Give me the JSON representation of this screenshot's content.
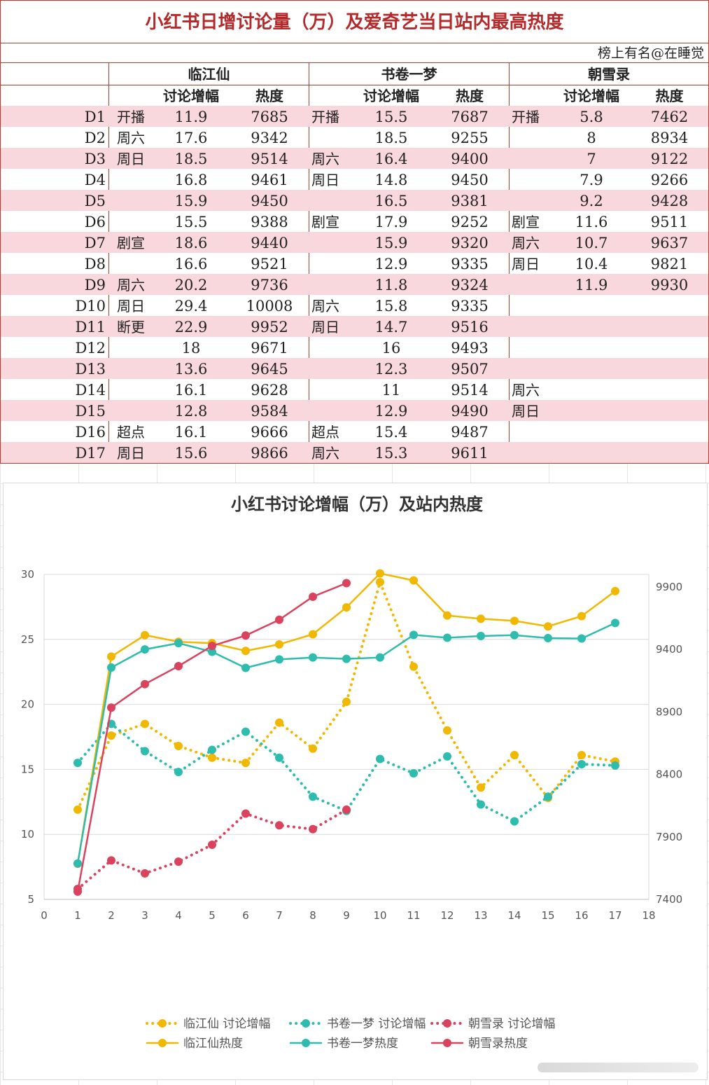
{
  "table": {
    "title": "小红书日增讨论量（万）及爱奇艺当日站内最高热度",
    "author": "榜上有名@在睡觉",
    "shows": [
      "临江仙",
      "书卷一梦",
      "朝雪录"
    ],
    "sub_headers": [
      "讨论增幅",
      "热度"
    ],
    "rows": [
      {
        "day": "D1",
        "a_note": "开播",
        "a_d": "11.9",
        "a_h": "7685",
        "b_note": "开播",
        "b_d": "15.5",
        "b_h": "7687",
        "c_note": "开播",
        "c_d": "5.8",
        "c_h": "7462"
      },
      {
        "day": "D2",
        "a_note": "周六",
        "a_d": "17.6",
        "a_h": "9342",
        "b_note": "",
        "b_d": "18.5",
        "b_h": "9255",
        "c_note": "",
        "c_d": "8",
        "c_h": "8934"
      },
      {
        "day": "D3",
        "a_note": "周日",
        "a_d": "18.5",
        "a_h": "9514",
        "b_note": "周六",
        "b_d": "16.4",
        "b_h": "9400",
        "c_note": "",
        "c_d": "7",
        "c_h": "9122"
      },
      {
        "day": "D4",
        "a_note": "",
        "a_d": "16.8",
        "a_h": "9461",
        "b_note": "周日",
        "b_d": "14.8",
        "b_h": "9450",
        "c_note": "",
        "c_d": "7.9",
        "c_h": "9266"
      },
      {
        "day": "D5",
        "a_note": "",
        "a_d": "15.9",
        "a_h": "9450",
        "b_note": "",
        "b_d": "16.5",
        "b_h": "9381",
        "c_note": "",
        "c_d": "9.2",
        "c_h": "9428"
      },
      {
        "day": "D6",
        "a_note": "",
        "a_d": "15.5",
        "a_h": "9388",
        "b_note": "剧宣",
        "b_d": "17.9",
        "b_h": "9252",
        "c_note": "剧宣",
        "c_d": "11.6",
        "c_h": "9511"
      },
      {
        "day": "D7",
        "a_note": "剧宣",
        "a_d": "18.6",
        "a_h": "9440",
        "b_note": "",
        "b_d": "15.9",
        "b_h": "9320",
        "c_note": "周六",
        "c_d": "10.7",
        "c_h": "9637"
      },
      {
        "day": "D8",
        "a_note": "",
        "a_d": "16.6",
        "a_h": "9521",
        "b_note": "",
        "b_d": "12.9",
        "b_h": "9335",
        "c_note": "周日",
        "c_d": "10.4",
        "c_h": "9821"
      },
      {
        "day": "D9",
        "a_note": "周六",
        "a_d": "20.2",
        "a_h": "9736",
        "b_note": "",
        "b_d": "11.8",
        "b_h": "9324",
        "c_note": "",
        "c_d": "11.9",
        "c_h": "9930"
      },
      {
        "day": "D10",
        "a_note": "周日",
        "a_d": "29.4",
        "a_h": "10008",
        "b_note": "周六",
        "b_d": "15.8",
        "b_h": "9335",
        "c_note": "",
        "c_d": "",
        "c_h": ""
      },
      {
        "day": "D11",
        "a_note": "断更",
        "a_d": "22.9",
        "a_h": "9952",
        "b_note": "周日",
        "b_d": "14.7",
        "b_h": "9516",
        "c_note": "",
        "c_d": "",
        "c_h": ""
      },
      {
        "day": "D12",
        "a_note": "",
        "a_d": "18",
        "a_h": "9671",
        "b_note": "",
        "b_d": "16",
        "b_h": "9493",
        "c_note": "",
        "c_d": "",
        "c_h": ""
      },
      {
        "day": "D13",
        "a_note": "",
        "a_d": "13.6",
        "a_h": "9645",
        "b_note": "",
        "b_d": "12.3",
        "b_h": "9507",
        "c_note": "",
        "c_d": "",
        "c_h": ""
      },
      {
        "day": "D14",
        "a_note": "",
        "a_d": "16.1",
        "a_h": "9628",
        "b_note": "",
        "b_d": "11",
        "b_h": "9514",
        "c_note": "周六",
        "c_d": "",
        "c_h": ""
      },
      {
        "day": "D15",
        "a_note": "",
        "a_d": "12.8",
        "a_h": "9584",
        "b_note": "",
        "b_d": "12.9",
        "b_h": "9490",
        "c_note": "周日",
        "c_d": "",
        "c_h": ""
      },
      {
        "day": "D16",
        "a_note": "超点",
        "a_d": "16.1",
        "a_h": "9666",
        "b_note": "超点",
        "b_d": "15.4",
        "b_h": "9487",
        "c_note": "",
        "c_d": "",
        "c_h": ""
      },
      {
        "day": "D17",
        "a_note": "周日",
        "a_d": "15.6",
        "a_h": "9866",
        "b_note": "周六",
        "b_d": "15.3",
        "b_h": "9611",
        "c_note": "",
        "c_d": "",
        "c_h": ""
      }
    ]
  },
  "colors": {
    "linjiang": "#f0b800",
    "shujuan": "#2dbcae",
    "zhaoxue": "#d9435e",
    "table_border": "#c0392b",
    "row_pink": "#f8d7dd"
  },
  "chart_data": {
    "type": "line",
    "title": "小红书讨论增幅（万）及站内热度",
    "x_ticks": [
      "0",
      "1",
      "2",
      "3",
      "4",
      "5",
      "6",
      "7",
      "8",
      "9",
      "10",
      "11",
      "12",
      "13",
      "14",
      "15",
      "16",
      "17",
      "18"
    ],
    "y_left_ticks": [
      "5",
      "10",
      "15",
      "20",
      "25",
      "30"
    ],
    "y_right_ticks": [
      "7400",
      "7900",
      "8400",
      "8900",
      "9400",
      "9900"
    ],
    "xlim": [
      0,
      18
    ],
    "ylim_left": [
      5,
      30
    ],
    "ylim_right": [
      7400,
      10000
    ],
    "legend_position": "bottom",
    "series": [
      {
        "name": "临江仙 讨论增幅",
        "axis": "left",
        "style": "dotted",
        "color": "#f0b800",
        "x": [
          1,
          2,
          3,
          4,
          5,
          6,
          7,
          8,
          9,
          10,
          11,
          12,
          13,
          14,
          15,
          16,
          17
        ],
        "y": [
          11.9,
          17.6,
          18.5,
          16.8,
          15.9,
          15.5,
          18.6,
          16.6,
          20.2,
          29.4,
          22.9,
          18,
          13.6,
          16.1,
          12.8,
          16.1,
          15.6
        ]
      },
      {
        "name": "书卷一梦 讨论增幅",
        "axis": "left",
        "style": "dotted",
        "color": "#2dbcae",
        "x": [
          1,
          2,
          3,
          4,
          5,
          6,
          7,
          8,
          9,
          10,
          11,
          12,
          13,
          14,
          15,
          16,
          17
        ],
        "y": [
          15.5,
          18.5,
          16.4,
          14.8,
          16.5,
          17.9,
          15.9,
          12.9,
          11.8,
          15.8,
          14.7,
          16,
          12.3,
          11,
          12.9,
          15.4,
          15.3
        ]
      },
      {
        "name": "朝雪录 讨论增幅",
        "axis": "left",
        "style": "dotted",
        "color": "#d9435e",
        "x": [
          1,
          2,
          3,
          4,
          5,
          6,
          7,
          8,
          9
        ],
        "y": [
          5.8,
          8,
          7,
          7.9,
          9.2,
          11.6,
          10.7,
          10.4,
          11.9
        ]
      },
      {
        "name": "临江仙热度",
        "axis": "right",
        "style": "solid",
        "color": "#f0b800",
        "x": [
          1,
          2,
          3,
          4,
          5,
          6,
          7,
          8,
          9,
          10,
          11,
          12,
          13,
          14,
          15,
          16,
          17
        ],
        "y": [
          7685,
          9342,
          9514,
          9461,
          9450,
          9388,
          9440,
          9521,
          9736,
          10008,
          9952,
          9671,
          9645,
          9628,
          9584,
          9666,
          9866
        ]
      },
      {
        "name": "书卷一梦热度",
        "axis": "right",
        "style": "solid",
        "color": "#2dbcae",
        "x": [
          1,
          2,
          3,
          4,
          5,
          6,
          7,
          8,
          9,
          10,
          11,
          12,
          13,
          14,
          15,
          16,
          17
        ],
        "y": [
          7687,
          9255,
          9400,
          9450,
          9381,
          9252,
          9320,
          9335,
          9324,
          9335,
          9516,
          9493,
          9507,
          9514,
          9490,
          9487,
          9611
        ]
      },
      {
        "name": "朝雪录热度",
        "axis": "right",
        "style": "solid",
        "color": "#d9435e",
        "x": [
          1,
          2,
          3,
          4,
          5,
          6,
          7,
          8,
          9
        ],
        "y": [
          7462,
          8934,
          9122,
          9266,
          9428,
          9511,
          9637,
          9821,
          9930
        ]
      }
    ]
  }
}
